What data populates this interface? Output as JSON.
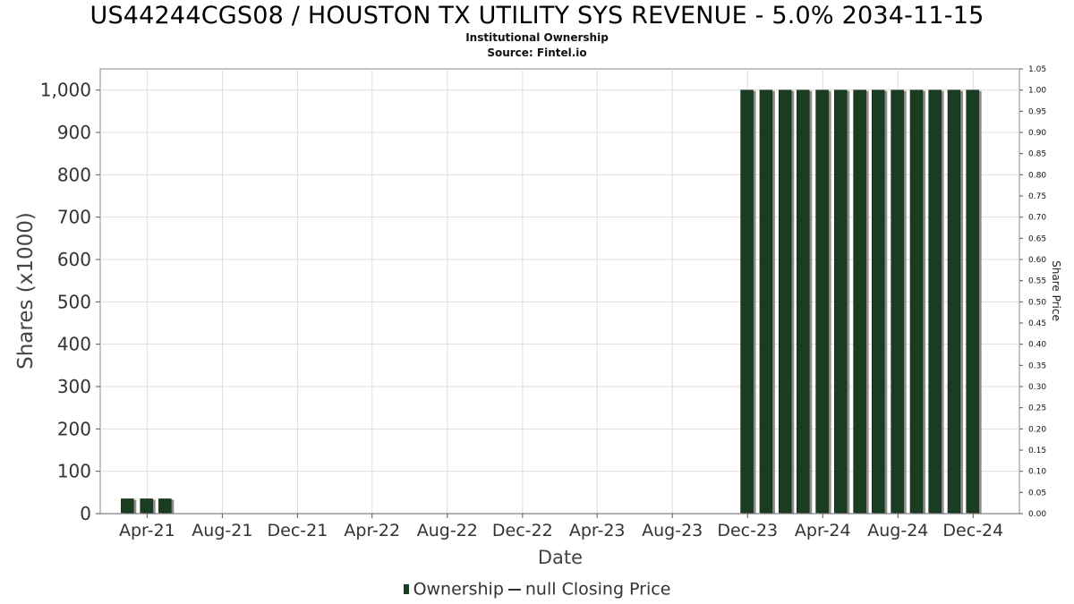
{
  "title": "US44244CGS08 / HOUSTON TX UTILITY SYS REVENUE - 5.0% 2034-11-15",
  "subtitle": "Institutional Ownership",
  "source": "Source: Fintel.io",
  "legend": {
    "ownership": "Ownership",
    "price": "null Closing Price"
  },
  "colors": {
    "bar": "#1a3d22",
    "bar_shadow": "#8c8c8c",
    "grid": "#dddddd",
    "axis": "#888888"
  },
  "chart_data": {
    "type": "bar",
    "xlabel": "Date",
    "ylabel": "Shares (x1000)",
    "y2label": "Share Price",
    "ylim": [
      0,
      1050
    ],
    "y2lim": [
      0,
      1.05
    ],
    "xlim": [
      "2021-01-15",
      "2025-02-14"
    ],
    "grid": true,
    "legend_position": "bottom",
    "yticks": [
      0,
      100,
      200,
      300,
      400,
      500,
      600,
      700,
      800,
      900,
      1000
    ],
    "ytick_labels": [
      "0",
      "100",
      "200",
      "300",
      "400",
      "500",
      "600",
      "700",
      "800",
      "900",
      "1,000"
    ],
    "y2ticks": [
      0,
      0.05,
      0.1,
      0.15,
      0.2,
      0.25,
      0.3,
      0.35,
      0.4,
      0.45,
      0.5,
      0.55,
      0.6,
      0.65,
      0.7,
      0.75,
      0.8,
      0.85,
      0.9,
      0.95,
      1.0,
      1.05
    ],
    "y2tick_labels": [
      "0.00",
      "0.05",
      "0.10",
      "0.15",
      "0.20",
      "0.25",
      "0.30",
      "0.35",
      "0.40",
      "0.45",
      "0.50",
      "0.55",
      "0.60",
      "0.65",
      "0.70",
      "0.75",
      "0.80",
      "0.85",
      "0.90",
      "0.95",
      "1.00",
      "1.05"
    ],
    "xticks": [
      {
        "date": "2021-04-01",
        "label": "Apr-21"
      },
      {
        "date": "2021-08-01",
        "label": "Aug-21"
      },
      {
        "date": "2021-12-01",
        "label": "Dec-21"
      },
      {
        "date": "2022-04-01",
        "label": "Apr-22"
      },
      {
        "date": "2022-08-01",
        "label": "Aug-22"
      },
      {
        "date": "2022-12-01",
        "label": "Dec-22"
      },
      {
        "date": "2023-04-01",
        "label": "Apr-23"
      },
      {
        "date": "2023-08-01",
        "label": "Aug-23"
      },
      {
        "date": "2023-12-01",
        "label": "Dec-23"
      },
      {
        "date": "2024-04-01",
        "label": "Apr-24"
      },
      {
        "date": "2024-08-01",
        "label": "Aug-24"
      },
      {
        "date": "2024-12-01",
        "label": "Dec-24"
      }
    ],
    "series": [
      {
        "name": "Ownership",
        "points": [
          {
            "x": "2021-02-28",
            "y": 35
          },
          {
            "x": "2021-03-31",
            "y": 35
          },
          {
            "x": "2021-04-30",
            "y": 35
          },
          {
            "x": "2023-11-30",
            "y": 1000
          },
          {
            "x": "2023-12-31",
            "y": 1000
          },
          {
            "x": "2024-01-31",
            "y": 1000
          },
          {
            "x": "2024-02-29",
            "y": 1000
          },
          {
            "x": "2024-03-31",
            "y": 1000
          },
          {
            "x": "2024-04-30",
            "y": 1000
          },
          {
            "x": "2024-05-31",
            "y": 1000
          },
          {
            "x": "2024-06-30",
            "y": 1000
          },
          {
            "x": "2024-07-31",
            "y": 1000
          },
          {
            "x": "2024-08-31",
            "y": 1000
          },
          {
            "x": "2024-09-30",
            "y": 1000
          },
          {
            "x": "2024-10-31",
            "y": 1000
          },
          {
            "x": "2024-11-30",
            "y": 1000
          }
        ]
      }
    ]
  }
}
